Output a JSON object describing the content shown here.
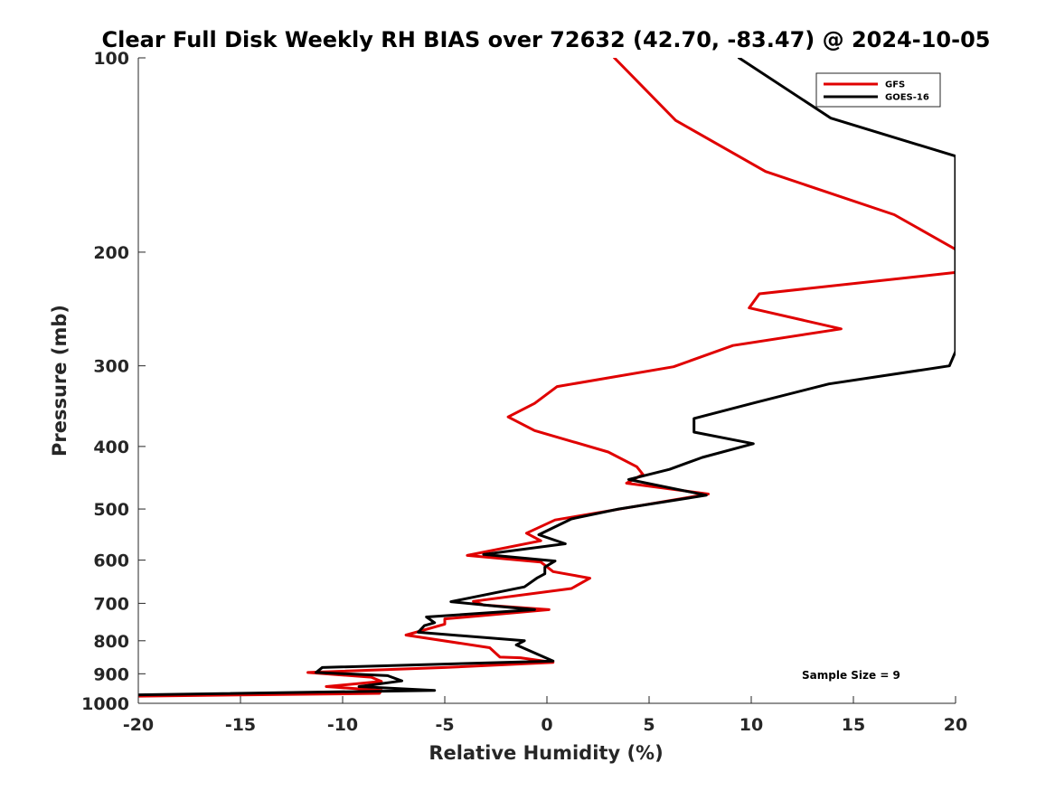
{
  "chart_data": {
    "type": "line",
    "title": "Clear Full Disk Weekly RH BIAS over 72632 (42.70, -83.47) @ 2024-10-05",
    "xlabel": "Relative Humidity (%)",
    "ylabel": "Pressure (mb)",
    "xlim": [
      -20,
      20
    ],
    "ylim": [
      100,
      1000
    ],
    "y_scale": "log",
    "y_reversed": true,
    "x_ticks": [
      "-20",
      "-15",
      "-10",
      "-5",
      "0",
      "5",
      "10",
      "15",
      "20"
    ],
    "y_ticks": [
      "100",
      "200",
      "300",
      "400",
      "500",
      "600",
      "700",
      "800",
      "900",
      "1000"
    ],
    "grid": false,
    "legend_position": "top-right",
    "annotation": "Sample Size = 9",
    "series": [
      {
        "name": "GFS",
        "color": "#e00000",
        "points": [
          [
            3.3,
            100
          ],
          [
            6.3,
            125
          ],
          [
            10.7,
            150
          ],
          [
            17,
            175
          ],
          [
            20,
            198
          ],
          [
            20,
            215
          ],
          [
            10.4,
            232
          ],
          [
            9.9,
            244
          ],
          [
            14.4,
            263
          ],
          [
            9.1,
            279
          ],
          [
            6.2,
            301
          ],
          [
            0.5,
            323
          ],
          [
            -0.6,
            343
          ],
          [
            -1.9,
            360
          ],
          [
            -0.6,
            378
          ],
          [
            3.0,
            408
          ],
          [
            4.4,
            430
          ],
          [
            4.7,
            442
          ],
          [
            3.9,
            456
          ],
          [
            7.9,
            474
          ],
          [
            0.4,
            520
          ],
          [
            -1.0,
            545
          ],
          [
            -0.3,
            560
          ],
          [
            -3.9,
            590
          ],
          [
            -0.3,
            604
          ],
          [
            0.3,
            625
          ],
          [
            2.1,
            640
          ],
          [
            1.2,
            664
          ],
          [
            -3.6,
            695
          ],
          [
            -3.1,
            704
          ],
          [
            0.1,
            716
          ],
          [
            -5.0,
            740
          ],
          [
            -5.0,
            754
          ],
          [
            -6.9,
            784
          ],
          [
            -2.8,
            820
          ],
          [
            -2.3,
            848
          ],
          [
            -1.3,
            850
          ],
          [
            0.3,
            864
          ],
          [
            -5.0,
            880
          ],
          [
            -11.7,
            896
          ],
          [
            -8.6,
            911
          ],
          [
            -8.1,
            925
          ],
          [
            -10.8,
            942
          ],
          [
            -8.1,
            955
          ],
          [
            -8.2,
            965
          ],
          [
            -20,
            975
          ]
        ]
      },
      {
        "name": "GOES-16",
        "color": "#000000",
        "points": [
          [
            9.4,
            100
          ],
          [
            13.9,
            124
          ],
          [
            20,
            142
          ],
          [
            20,
            285
          ],
          [
            19.7,
            300
          ],
          [
            13.8,
            320
          ],
          [
            10.2,
            342
          ],
          [
            7.2,
            362
          ],
          [
            7.2,
            380
          ],
          [
            10.1,
            396
          ],
          [
            7.6,
            416
          ],
          [
            6.0,
            434
          ],
          [
            4.0,
            450
          ],
          [
            7.8,
            476
          ],
          [
            3.5,
            500
          ],
          [
            1.2,
            518
          ],
          [
            -0.4,
            548
          ],
          [
            0.9,
            566
          ],
          [
            -3.1,
            588
          ],
          [
            0.4,
            602
          ],
          [
            -0.1,
            615
          ],
          [
            -0.1,
            630
          ],
          [
            -0.5,
            640
          ],
          [
            -1.1,
            660
          ],
          [
            -4.7,
            696
          ],
          [
            -2.5,
            707
          ],
          [
            -0.6,
            716
          ],
          [
            -5.9,
            735
          ],
          [
            -5.5,
            750
          ],
          [
            -6.0,
            758
          ],
          [
            -6.3,
            776
          ],
          [
            -1.1,
            800
          ],
          [
            -1.5,
            812
          ],
          [
            0.3,
            860
          ],
          [
            -11.0,
            880
          ],
          [
            -11.3,
            896
          ],
          [
            -7.8,
            906
          ],
          [
            -7.1,
            923
          ],
          [
            -9.2,
            942
          ],
          [
            -5.5,
            955
          ],
          [
            -20,
            970
          ]
        ]
      }
    ]
  }
}
